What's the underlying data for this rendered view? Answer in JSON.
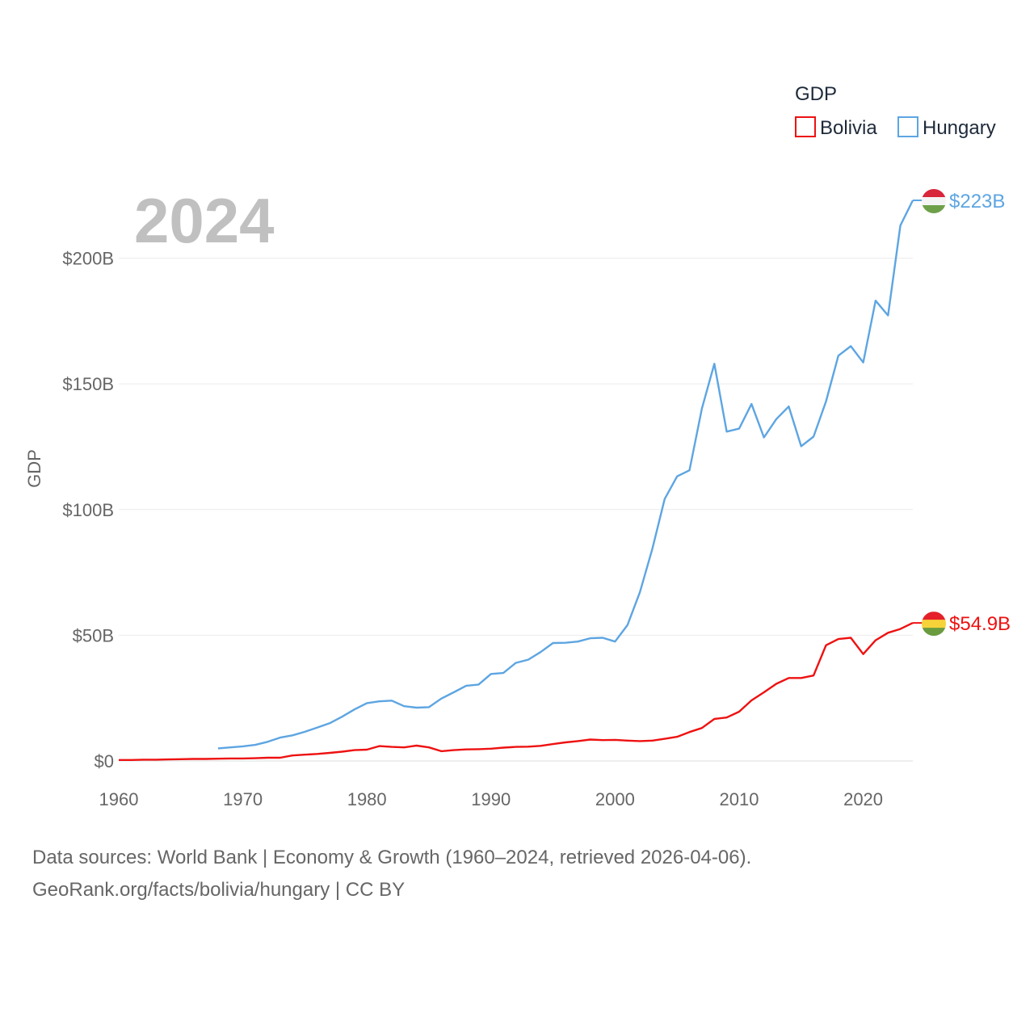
{
  "chart_data": {
    "type": "line",
    "title": "GDP",
    "year_label": "2024",
    "ylabel": "GDP",
    "xlabel": "",
    "xlim": [
      1960,
      2024
    ],
    "ylim": [
      0,
      223
    ],
    "x_ticks": [
      1960,
      1970,
      1980,
      1990,
      2000,
      2010,
      2020
    ],
    "x_tick_labels": [
      "1960",
      "1970",
      "1980",
      "1990",
      "2000",
      "2010",
      "2020"
    ],
    "y_ticks": [
      0,
      50,
      100,
      150,
      200
    ],
    "y_tick_labels": [
      "$0",
      "$50B",
      "$100B",
      "$150B",
      "$200B"
    ],
    "legend_title": "GDP",
    "legend_position": "top-right",
    "series": [
      {
        "name": "Bolivia",
        "color": "#ee1111",
        "end_label": "$54.9B",
        "x": [
          1960,
          1961,
          1962,
          1963,
          1964,
          1965,
          1966,
          1967,
          1968,
          1969,
          1970,
          1971,
          1972,
          1973,
          1974,
          1975,
          1976,
          1977,
          1978,
          1979,
          1980,
          1981,
          1982,
          1983,
          1984,
          1985,
          1986,
          1987,
          1988,
          1989,
          1990,
          1991,
          1992,
          1993,
          1994,
          1995,
          1996,
          1997,
          1998,
          1999,
          2000,
          2001,
          2002,
          2003,
          2004,
          2005,
          2006,
          2007,
          2008,
          2009,
          2010,
          2011,
          2012,
          2013,
          2014,
          2015,
          2016,
          2017,
          2018,
          2019,
          2020,
          2021,
          2022,
          2023,
          2024
        ],
        "values": [
          0.4,
          0.4,
          0.5,
          0.5,
          0.6,
          0.7,
          0.8,
          0.8,
          0.9,
          1.0,
          1.0,
          1.1,
          1.3,
          1.3,
          2.2,
          2.5,
          2.8,
          3.2,
          3.7,
          4.3,
          4.5,
          5.9,
          5.6,
          5.4,
          6.1,
          5.4,
          3.9,
          4.3,
          4.6,
          4.7,
          4.9,
          5.3,
          5.6,
          5.7,
          6.0,
          6.7,
          7.4,
          7.9,
          8.5,
          8.3,
          8.4,
          8.1,
          7.9,
          8.1,
          8.8,
          9.6,
          11.5,
          13.1,
          16.7,
          17.3,
          19.6,
          24.1,
          27.3,
          30.7,
          33.0,
          33.0,
          34.0,
          46.0,
          48.5,
          49.0,
          42.5,
          48.0,
          51.0,
          52.5,
          54.9
        ]
      },
      {
        "name": "Hungary",
        "color": "#5da5e2",
        "end_label": "$223B",
        "x": [
          1968,
          1969,
          1970,
          1971,
          1972,
          1973,
          1974,
          1975,
          1976,
          1977,
          1978,
          1979,
          1980,
          1981,
          1982,
          1983,
          1984,
          1985,
          1986,
          1987,
          1988,
          1989,
          1990,
          1991,
          1992,
          1993,
          1994,
          1995,
          1996,
          1997,
          1998,
          1999,
          2000,
          2001,
          2002,
          2003,
          2004,
          2005,
          2006,
          2007,
          2008,
          2009,
          2010,
          2011,
          2012,
          2013,
          2014,
          2015,
          2016,
          2017,
          2018,
          2019,
          2020,
          2021,
          2022,
          2023,
          2024
        ],
        "values": [
          5.0,
          5.4,
          5.8,
          6.4,
          7.6,
          9.3,
          10.2,
          11.6,
          13.3,
          15.0,
          17.6,
          20.5,
          23.0,
          23.7,
          24.0,
          21.8,
          21.2,
          21.4,
          24.8,
          27.3,
          29.9,
          30.4,
          34.6,
          35.0,
          39.0,
          40.3,
          43.3,
          46.9,
          47.0,
          47.5,
          48.8,
          49.0,
          47.5,
          54.0,
          67.1,
          84.3,
          104.2,
          113.2,
          115.6,
          140.2,
          158.0,
          131.0,
          132.2,
          142.0,
          128.7,
          136.0,
          141.0,
          125.2,
          129.0,
          143.0,
          161.2,
          165.0,
          158.5,
          183.1,
          177.2,
          213.0,
          223.0
        ]
      }
    ]
  },
  "source_line1": "Data sources: World Bank | Economy & Growth (1960–2024, retrieved 2026-04-06).",
  "source_line2": "GeoRank.org/facts/bolivia/hungary | CC BY"
}
